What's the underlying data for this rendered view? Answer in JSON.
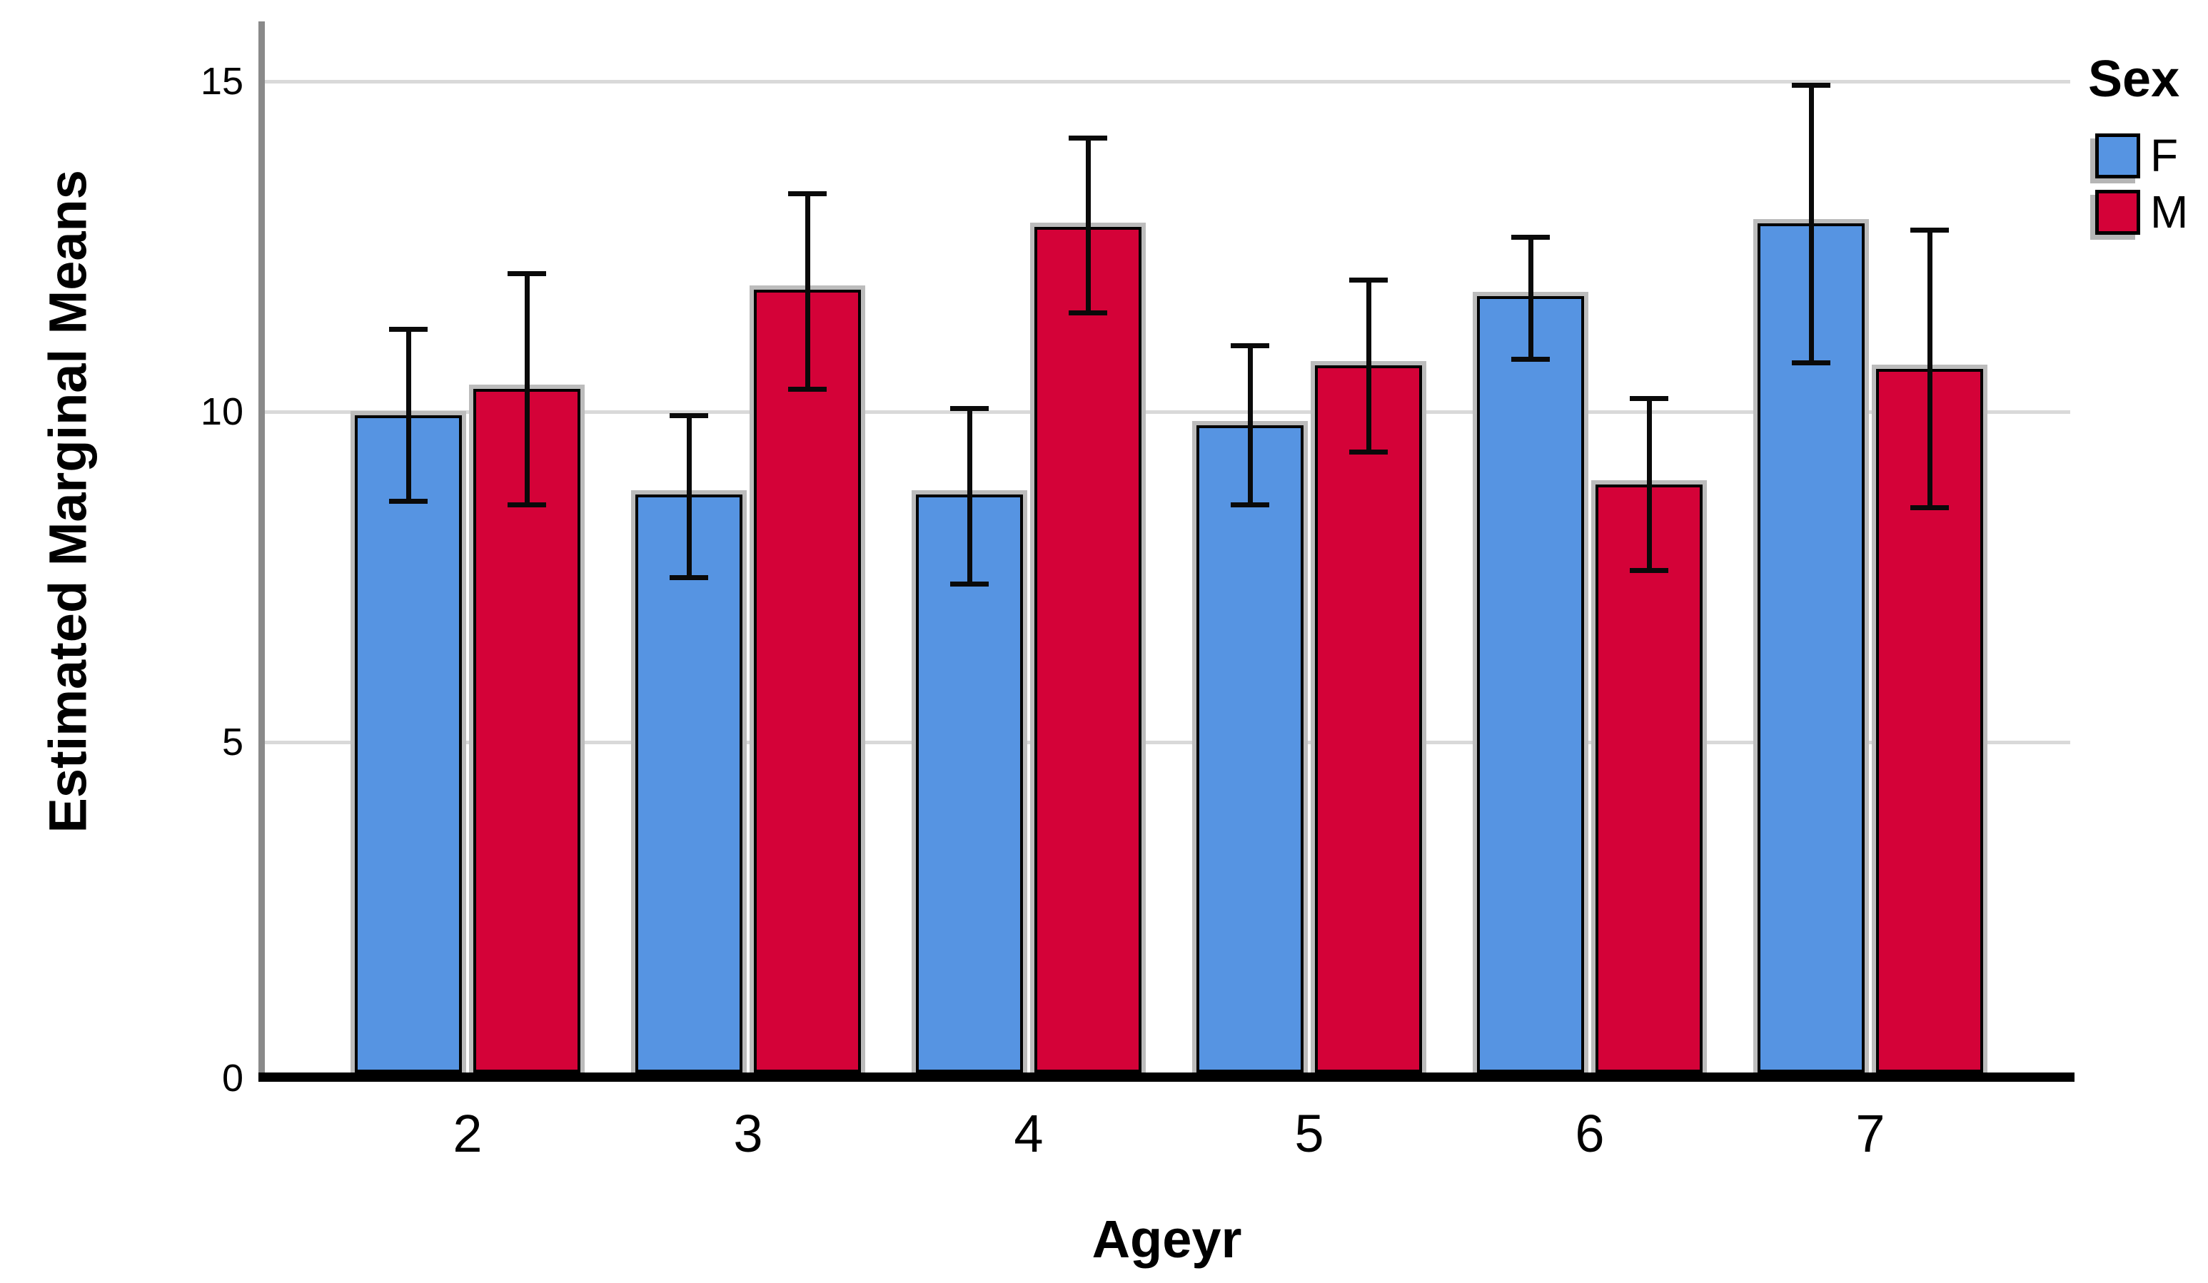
{
  "chart_data": {
    "type": "bar",
    "title": "",
    "xlabel": "Ageyr",
    "ylabel": "Estimated Marginal Means",
    "categories": [
      "2",
      "3",
      "4",
      "5",
      "6",
      "7"
    ],
    "yticks": [
      0,
      5,
      10,
      15
    ],
    "ylim": [
      0,
      16
    ],
    "grid": "horizontal",
    "legend_position": "top-right",
    "legend_title": "Sex",
    "error_bars": true,
    "series": [
      {
        "name": "F",
        "color": "#5694E2",
        "values": [
          9.95,
          8.75,
          8.75,
          9.8,
          11.75,
          12.85
        ],
        "ci_low": [
          8.65,
          7.5,
          7.4,
          8.6,
          10.8,
          10.75
        ],
        "ci_high": [
          11.25,
          9.95,
          10.05,
          11.0,
          12.65,
          14.95
        ]
      },
      {
        "name": "M",
        "color": "#D40238",
        "values": [
          10.35,
          11.85,
          12.8,
          10.7,
          8.9,
          10.65
        ],
        "ci_low": [
          8.6,
          10.35,
          11.5,
          9.4,
          7.6,
          8.55
        ],
        "ci_high": [
          12.1,
          13.3,
          14.15,
          12.0,
          10.2,
          12.75
        ]
      }
    ]
  },
  "y_axis": {
    "title": "Estimated Marginal Means"
  },
  "x_axis": {
    "title": "Ageyr"
  },
  "legend": {
    "title": "Sex",
    "items": [
      {
        "label": "F",
        "color": "#5694E2"
      },
      {
        "label": "M",
        "color": "#D40238"
      }
    ]
  }
}
